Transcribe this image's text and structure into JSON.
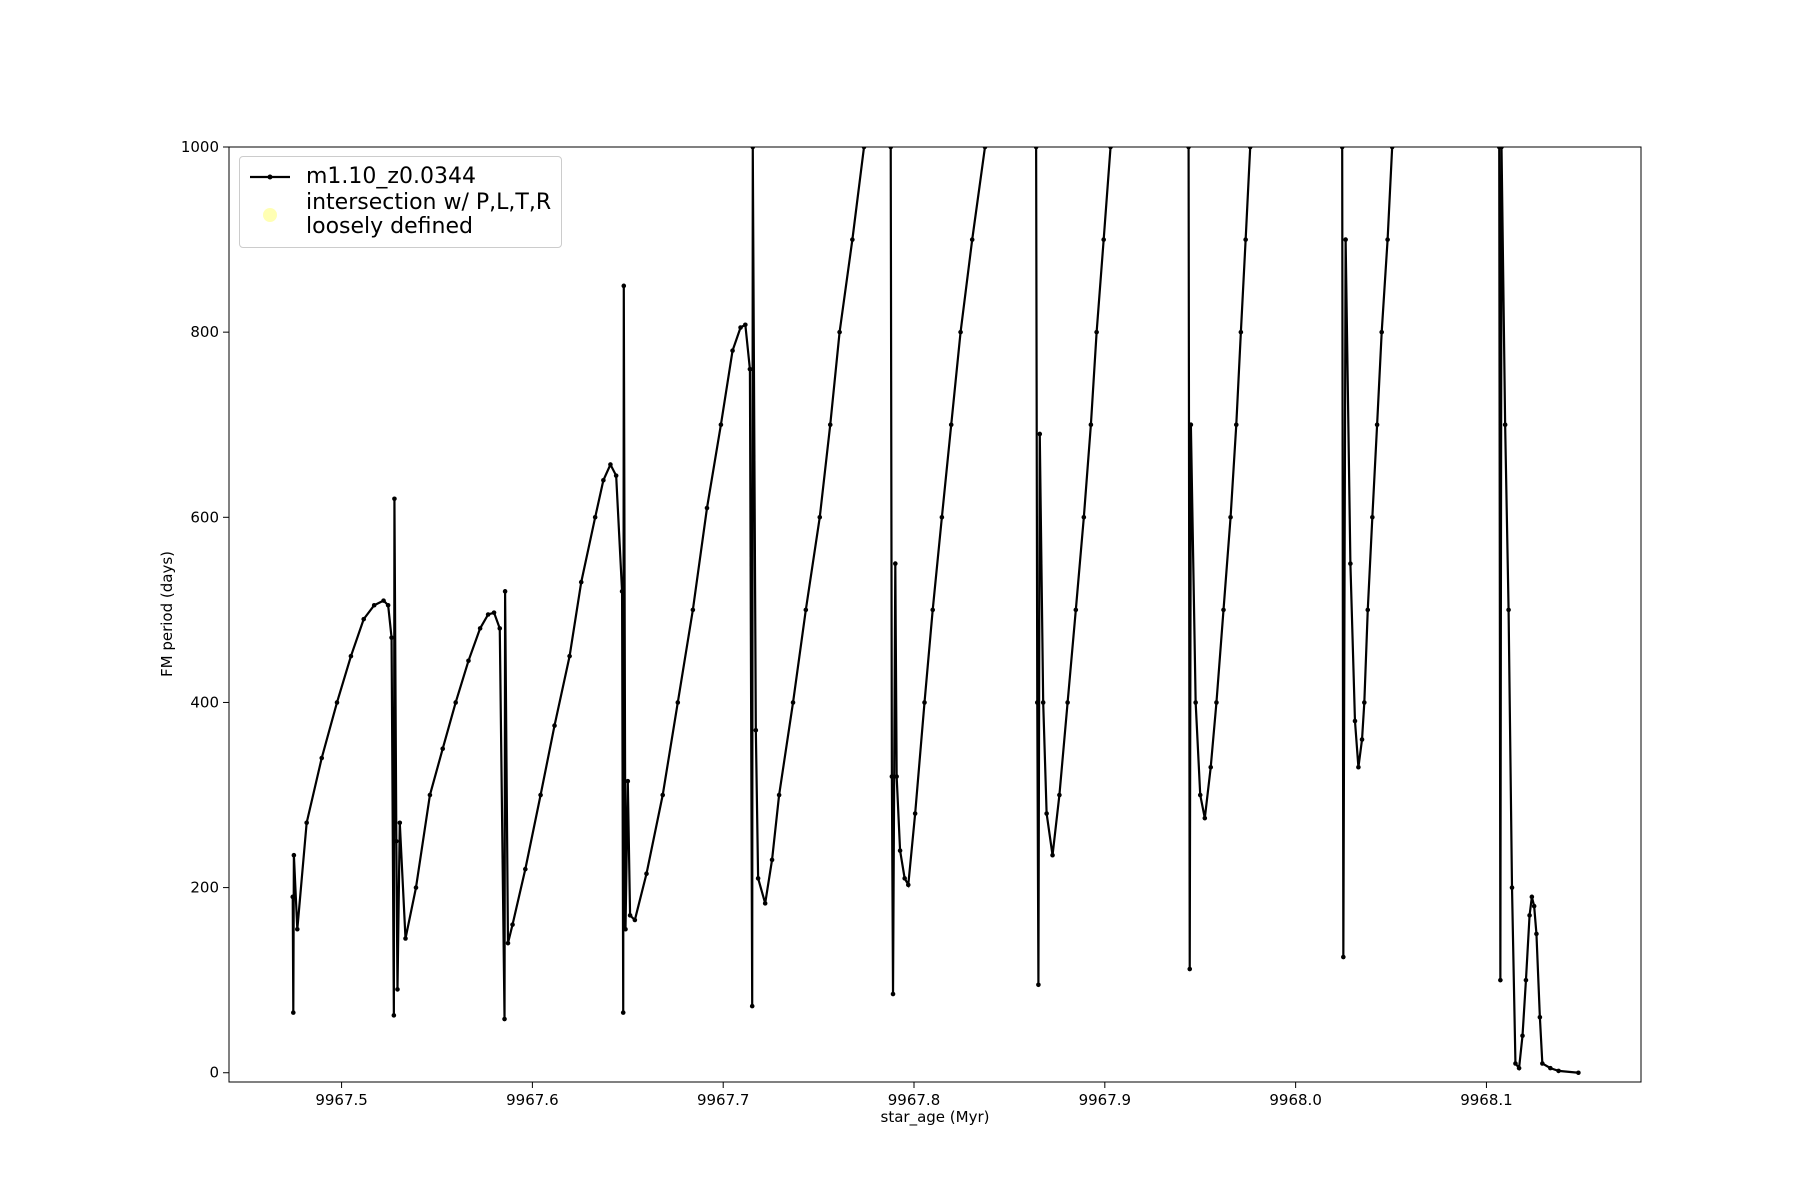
{
  "chart_data": {
    "type": "line",
    "xlabel": "star_age (Myr)",
    "ylabel": "FM period (days)",
    "xlim": [
      9967.441,
      9968.181
    ],
    "ylim": [
      -10,
      1000
    ],
    "xticks": [
      9967.5,
      9967.6,
      9967.7,
      9967.8,
      9967.9,
      {
        "value": 9968.0,
        "label": "9968.0"
      },
      9968.1
    ],
    "yticks": [
      0,
      200,
      400,
      600,
      800,
      1000
    ],
    "legend": "upper left",
    "series": [
      {
        "name": "m1.10_z0.0344",
        "color": "#000000",
        "marker": "o",
        "x": [
          9967.4744,
          9967.4747,
          9967.475,
          9967.4768,
          9967.4817,
          9967.4896,
          9967.4976,
          9967.5049,
          9967.5116,
          9967.5171,
          9967.522,
          9967.5244,
          9967.5262,
          9967.5274,
          9967.5277,
          9967.5287,
          9967.5293,
          9967.5305,
          9967.5335,
          9967.539,
          9967.5463,
          9967.553,
          9967.5598,
          9967.5665,
          9967.5726,
          9967.5768,
          9967.5799,
          9967.5829,
          9967.5854,
          9967.5857,
          9967.5872,
          9967.5896,
          9967.5963,
          9967.6043,
          9967.6116,
          9967.6195,
          9967.6256,
          9967.6329,
          9967.6372,
          9967.6409,
          9967.6439,
          9967.647,
          9967.6476,
          9967.6479,
          9967.6488,
          9967.65,
          9967.6512,
          9967.6537,
          9967.6598,
          9967.6683,
          9967.6762,
          9967.6841,
          9967.6915,
          9967.6988,
          9967.7049,
          9967.7091,
          9967.7116,
          9967.714,
          9967.7152,
          9967.7155,
          9967.7171,
          9967.7183,
          9967.722,
          9967.7256,
          9967.7293,
          9967.7366,
          9967.7433,
          9967.7506,
          9967.7561,
          9967.761,
          9967.7677,
          9967.7738,
          9967.78,
          9967.7878,
          9967.7884,
          9967.789,
          9967.7902,
          9967.7909,
          9967.7927,
          9967.7951,
          9967.797,
          9967.8006,
          9967.8055,
          9967.8098,
          9967.8146,
          9967.8195,
          9967.8244,
          9967.8305,
          9967.8372,
          9967.85,
          9967.864,
          9967.8646,
          9967.8652,
          9967.8659,
          9967.8677,
          9967.8695,
          9967.8726,
          9967.8762,
          9967.8805,
          9967.8848,
          9967.889,
          9967.8927,
          9967.8957,
          9967.8994,
          9967.903,
          9967.92,
          9967.9439,
          9967.9445,
          9967.9451,
          9967.9476,
          9967.95,
          9967.9524,
          9967.9555,
          9967.9585,
          9967.9622,
          9967.9659,
          9967.9689,
          9967.9713,
          9967.9738,
          9967.9762,
          9968.0,
          9968.0244,
          9968.025,
          9968.0262,
          9968.0287,
          9968.0311,
          9968.0329,
          9968.0348,
          9968.036,
          9968.0378,
          9968.0402,
          9968.0427,
          9968.0451,
          9968.0482,
          9968.0506,
          9968.08,
          9968.1067,
          9968.1073,
          9968.1079,
          9968.1098,
          9968.1116,
          9968.1134,
          9968.1152,
          9968.1171,
          9968.1189,
          9968.1207,
          9968.1226,
          9968.1238,
          9968.125,
          9968.1262,
          9968.128,
          9968.1293,
          9968.1335,
          9968.1378,
          9968.1482
        ],
        "values": [
          190,
          65,
          235,
          155,
          270,
          340,
          400,
          450,
          490,
          505,
          510,
          505,
          470,
          62,
          620,
          250,
          90,
          270,
          145,
          200,
          300,
          350,
          400,
          445,
          480,
          495,
          497,
          480,
          58,
          520,
          140,
          160,
          220,
          300,
          375,
          450,
          530,
          600,
          640,
          657,
          645,
          520,
          65,
          850,
          155,
          315,
          170,
          165,
          215,
          300,
          400,
          500,
          610,
          700,
          780,
          805,
          808,
          760,
          72,
          1000,
          370,
          210,
          183,
          230,
          300,
          400,
          500,
          600,
          700,
          800,
          900,
          1000,
          null,
          1000,
          320,
          85,
          550,
          320,
          240,
          210,
          203,
          280,
          400,
          500,
          600,
          700,
          800,
          900,
          1000,
          null,
          1000,
          400,
          95,
          690,
          400,
          280,
          235,
          300,
          400,
          500,
          600,
          700,
          800,
          900,
          1000,
          null,
          1000,
          112,
          700,
          400,
          300,
          275,
          330,
          400,
          500,
          600,
          700,
          800,
          900,
          1000,
          null,
          1000,
          125,
          900,
          550,
          380,
          330,
          360,
          400,
          500,
          600,
          700,
          800,
          900,
          1000,
          null,
          1000,
          100,
          1000,
          700,
          500,
          200,
          10,
          5,
          40,
          100,
          170,
          190,
          180,
          150,
          60,
          10,
          5,
          2,
          0
        ]
      },
      {
        "name": "intersection w/ P,L,T,R\nloosely defined",
        "color": "#ffffb3",
        "marker": "o"
      }
    ]
  }
}
